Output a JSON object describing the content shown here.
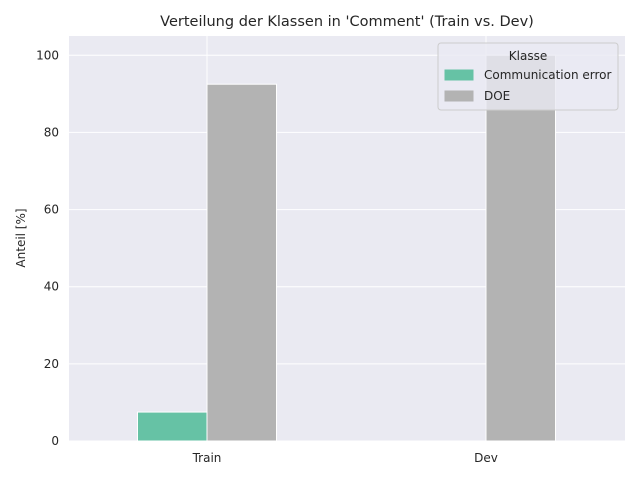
{
  "chart_data": {
    "type": "bar",
    "title": "Verteilung der Klassen in 'Comment' (Train vs. Dev)",
    "xlabel": "",
    "ylabel": "Anteil [%]",
    "categories": [
      "Train",
      "Dev"
    ],
    "series": [
      {
        "name": "Communication error",
        "values": [
          7.5,
          0
        ],
        "color": "#66c2a5"
      },
      {
        "name": "DOE",
        "values": [
          92.5,
          100
        ],
        "color": "#b3b3b3"
      }
    ],
    "ylim": [
      0,
      105
    ],
    "yticks": [
      0,
      20,
      40,
      60,
      80,
      100
    ],
    "grid": true,
    "legend": {
      "title": "Klasse",
      "position": "top-right"
    },
    "background_color": "#eaeaf2"
  }
}
